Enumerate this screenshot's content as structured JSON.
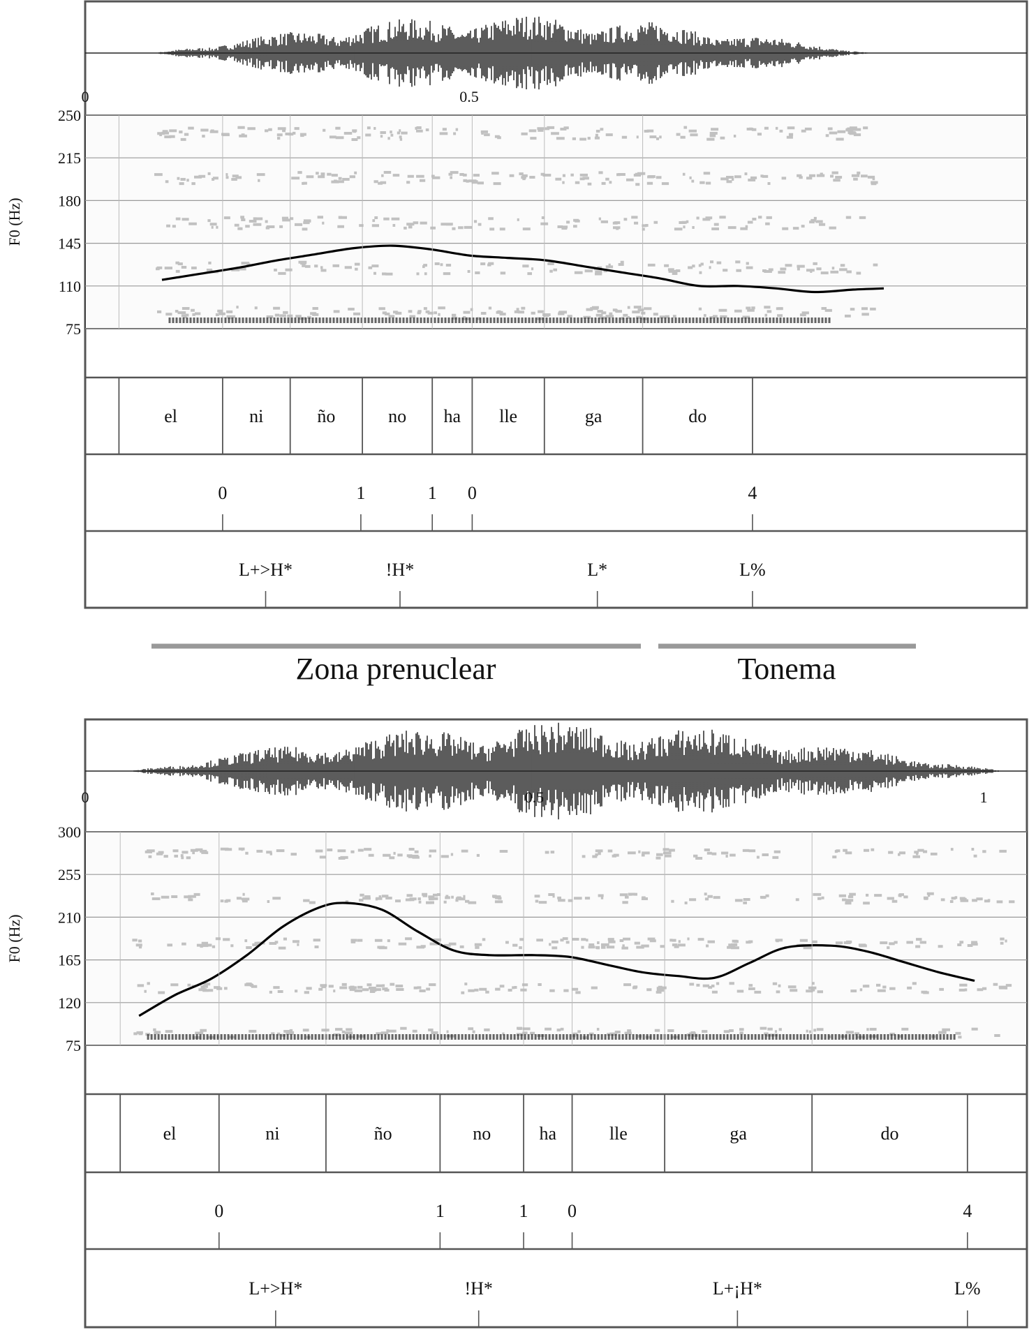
{
  "zones": {
    "prenuclear_label": "Zona prenuclear",
    "tonema_label": "Tonema"
  },
  "chart_data": [
    {
      "type": "line",
      "ylabel": "F0 (Hz)",
      "ylim": [
        75,
        250
      ],
      "y_ticks": [
        "250",
        "215",
        "180",
        "145",
        "110",
        "75"
      ],
      "time_ticks": [
        {
          "label": "0",
          "t": 0
        },
        {
          "label": "0.5",
          "t": 0.5
        }
      ],
      "x": [
        0.1,
        0.15,
        0.2,
        0.25,
        0.3,
        0.35,
        0.4,
        0.45,
        0.5,
        0.55,
        0.6,
        0.65,
        0.7,
        0.75,
        0.8,
        0.85,
        0.9,
        0.95,
        1.0,
        1.04
      ],
      "series": [
        {
          "values": [
            115,
            120,
            125,
            131,
            136,
            141,
            143,
            140,
            135,
            133,
            131,
            126,
            121,
            116,
            110,
            110,
            108,
            105,
            107,
            108
          ]
        }
      ],
      "syllables": [
        {
          "text": "el",
          "t0": 0.044,
          "t1": 0.179
        },
        {
          "text": "ni",
          "t0": 0.179,
          "t1": 0.267
        },
        {
          "text": "ño",
          "t0": 0.267,
          "t1": 0.361
        },
        {
          "text": "no",
          "t0": 0.361,
          "t1": 0.452
        },
        {
          "text": "ha",
          "t0": 0.452,
          "t1": 0.504
        },
        {
          "text": "lle",
          "t0": 0.504,
          "t1": 0.598
        },
        {
          "text": "ga",
          "t0": 0.598,
          "t1": 0.726
        },
        {
          "text": "do",
          "t0": 0.726,
          "t1": 0.869
        }
      ],
      "break_indices": [
        {
          "text": "0",
          "t": 0.179
        },
        {
          "text": "1",
          "t": 0.359
        },
        {
          "text": "1",
          "t": 0.452
        },
        {
          "text": "0",
          "t": 0.504
        },
        {
          "text": "4",
          "t": 0.869
        }
      ],
      "tones": [
        {
          "text": "L+>H*",
          "t": 0.235
        },
        {
          "text": "!H*",
          "t": 0.41
        },
        {
          "text": "L*",
          "t": 0.667
        },
        {
          "text": "L%",
          "t": 0.869
        }
      ]
    },
    {
      "type": "line",
      "ylabel": "F0 (Hz)",
      "ylim": [
        75,
        300
      ],
      "y_ticks": [
        "300",
        "255",
        "210",
        "165",
        "120",
        "75"
      ],
      "time_ticks": [
        {
          "label": "0",
          "t": 0
        },
        {
          "label": "0.5",
          "t": 0.5
        },
        {
          "label": "1",
          "t": 1.0
        }
      ],
      "x": [
        0.06,
        0.1,
        0.14,
        0.18,
        0.22,
        0.26,
        0.29,
        0.33,
        0.37,
        0.41,
        0.45,
        0.5,
        0.54,
        0.58,
        0.62,
        0.66,
        0.7,
        0.74,
        0.78,
        0.83,
        0.87,
        0.91,
        0.95,
        0.99
      ],
      "series": [
        {
          "values": [
            106,
            128,
            145,
            170,
            200,
            220,
            225,
            218,
            195,
            175,
            170,
            170,
            168,
            160,
            152,
            148,
            146,
            162,
            178,
            180,
            174,
            163,
            152,
            143
          ]
        }
      ],
      "syllables": [
        {
          "text": "el",
          "t0": 0.039,
          "t1": 0.149
        },
        {
          "text": "ni",
          "t0": 0.149,
          "t1": 0.268
        },
        {
          "text": "ño",
          "t0": 0.268,
          "t1": 0.395
        },
        {
          "text": "no",
          "t0": 0.395,
          "t1": 0.488
        },
        {
          "text": "ha",
          "t0": 0.488,
          "t1": 0.542
        },
        {
          "text": "lle",
          "t0": 0.542,
          "t1": 0.645
        },
        {
          "text": "ga",
          "t0": 0.645,
          "t1": 0.809
        },
        {
          "text": "do",
          "t0": 0.809,
          "t1": 0.982
        }
      ],
      "break_indices": [
        {
          "text": "0",
          "t": 0.149
        },
        {
          "text": "1",
          "t": 0.395
        },
        {
          "text": "1",
          "t": 0.488
        },
        {
          "text": "0",
          "t": 0.542
        },
        {
          "text": "4",
          "t": 0.982
        }
      ],
      "tones": [
        {
          "text": "L+>H*",
          "t": 0.212
        },
        {
          "text": "!H*",
          "t": 0.438
        },
        {
          "text": "L+¡H*",
          "t": 0.726
        },
        {
          "text": "L%",
          "t": 0.982
        }
      ]
    }
  ]
}
